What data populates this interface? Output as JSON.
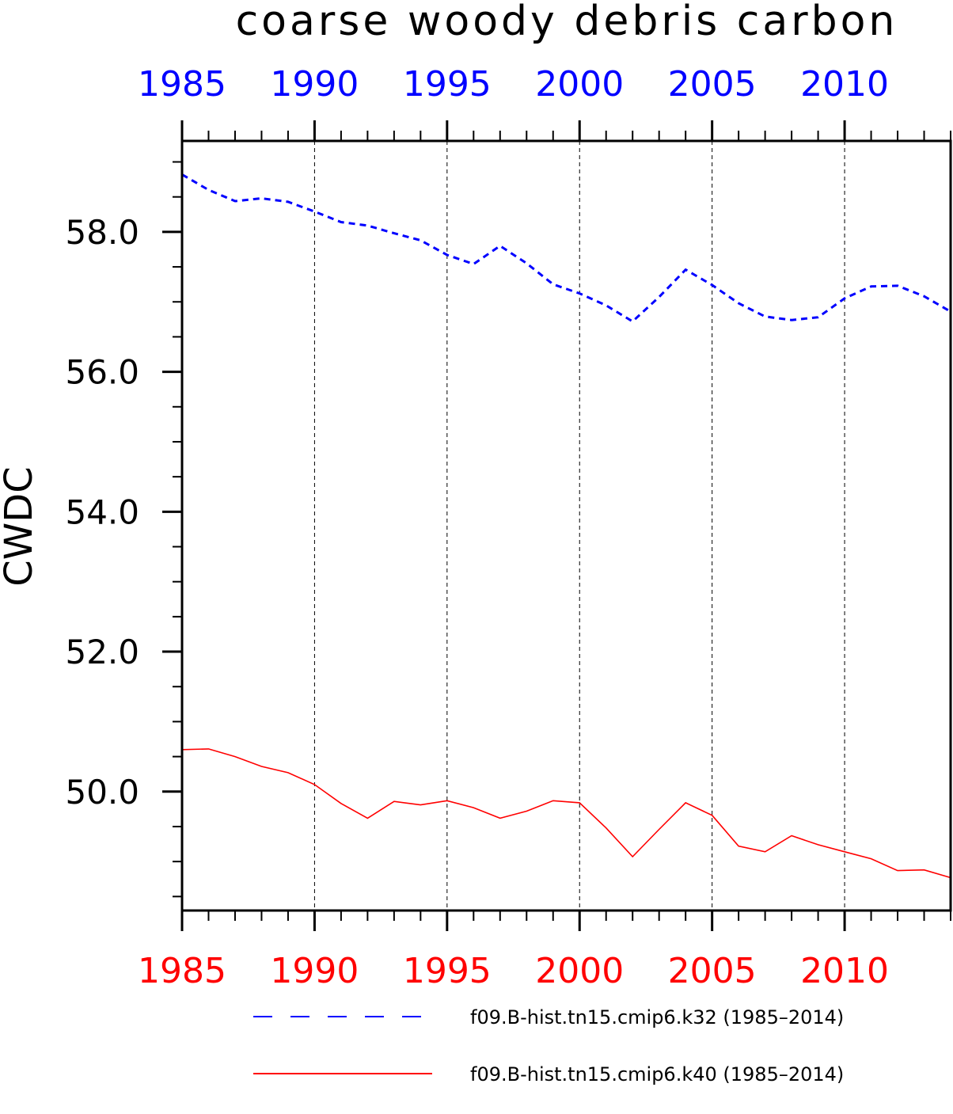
{
  "chart_data": {
    "type": "line",
    "title": "coarse woody debris carbon",
    "ylabel": "CWDC",
    "xlabel": "",
    "xlim": [
      1985,
      2014
    ],
    "ylim": [
      48.3,
      59.3
    ],
    "grid": "vertical dashed lines at major x ticks",
    "x_ticks": [
      "1985",
      "1990",
      "1995",
      "2000",
      "2005",
      "2010"
    ],
    "y_ticks": [
      "50.0",
      "52.0",
      "54.0",
      "56.0",
      "58.0"
    ],
    "top_axis_color": "#0000ff",
    "bottom_axis_color": "#ff0000",
    "legend_position": "bottom",
    "x": [
      1985,
      1986,
      1987,
      1988,
      1989,
      1990,
      1991,
      1992,
      1993,
      1994,
      1995,
      1996,
      1997,
      1998,
      1999,
      2000,
      2001,
      2002,
      2003,
      2004,
      2005,
      2006,
      2007,
      2008,
      2009,
      2010,
      2011,
      2012,
      2013,
      2014
    ],
    "series": [
      {
        "name": "f09.B-hist.tn15.cmip6.k32 (1985–2014)",
        "color": "#0000ff",
        "dash": "dashed",
        "values": [
          58.82,
          58.6,
          58.44,
          58.48,
          58.43,
          58.29,
          58.14,
          58.09,
          57.98,
          57.88,
          57.67,
          57.54,
          57.8,
          57.55,
          57.25,
          57.12,
          56.95,
          56.72,
          57.07,
          57.46,
          57.24,
          56.98,
          56.79,
          56.74,
          56.78,
          57.05,
          57.22,
          57.23,
          57.08,
          56.86
        ]
      },
      {
        "name": "f09.B-hist.tn15.cmip6.k40 (1985–2014)",
        "color": "#ff0000",
        "dash": "solid",
        "values": [
          50.6,
          50.61,
          50.5,
          50.36,
          50.27,
          50.1,
          49.83,
          49.62,
          49.86,
          49.81,
          49.87,
          49.77,
          49.62,
          49.72,
          49.87,
          49.84,
          49.48,
          49.07,
          49.46,
          49.84,
          49.66,
          49.22,
          49.14,
          49.37,
          49.24,
          49.14,
          49.04,
          48.87,
          48.88,
          48.77
        ]
      }
    ]
  }
}
